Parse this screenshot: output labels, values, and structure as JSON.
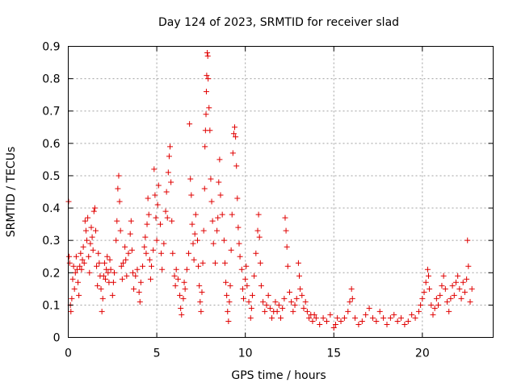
{
  "chart_data": {
    "type": "scatter",
    "title": "Day 124 of 2023, SRMTID for receiver slad",
    "xlabel": "GPS time / hours",
    "ylabel": "SRMTID / TECUs",
    "xlim": [
      0,
      24
    ],
    "ylim": [
      0,
      0.9
    ],
    "xticks": [
      0,
      5,
      10,
      15,
      20
    ],
    "xtick_labels": [
      "0",
      "5",
      "10",
      "15",
      "20"
    ],
    "yticks": [
      0,
      0.1,
      0.2,
      0.3,
      0.4,
      0.5,
      0.6,
      0.7,
      0.8,
      0.9
    ],
    "ytick_labels": [
      "0",
      "0.1",
      "0.2",
      "0.3",
      "0.4",
      "0.5",
      "0.6",
      "0.7",
      "0.8",
      "0.9"
    ],
    "grid": true,
    "marker": "+",
    "marker_color": "#e00000",
    "series": [
      {
        "name": "SRMTID",
        "points": [
          [
            0.02,
            0.42
          ],
          [
            0.05,
            0.25
          ],
          [
            0.08,
            0.23
          ],
          [
            0.12,
            0.1
          ],
          [
            0.15,
            0.08
          ],
          [
            0.2,
            0.12
          ],
          [
            0.25,
            0.18
          ],
          [
            0.3,
            0.22
          ],
          [
            0.35,
            0.15
          ],
          [
            0.4,
            0.2
          ],
          [
            0.45,
            0.25
          ],
          [
            0.5,
            0.21
          ],
          [
            0.55,
            0.17
          ],
          [
            0.6,
            0.13
          ],
          [
            0.65,
            0.22
          ],
          [
            0.7,
            0.26
          ],
          [
            0.75,
            0.21
          ],
          [
            0.8,
            0.24
          ],
          [
            0.85,
            0.28
          ],
          [
            0.9,
            0.23
          ],
          [
            0.95,
            0.36
          ],
          [
            1.0,
            0.33
          ],
          [
            1.05,
            0.3
          ],
          [
            1.1,
            0.37
          ],
          [
            1.15,
            0.25
          ],
          [
            1.2,
            0.2
          ],
          [
            1.25,
            0.29
          ],
          [
            1.3,
            0.34
          ],
          [
            1.35,
            0.31
          ],
          [
            1.4,
            0.27
          ],
          [
            1.45,
            0.39
          ],
          [
            1.5,
            0.4
          ],
          [
            1.55,
            0.33
          ],
          [
            1.6,
            0.22
          ],
          [
            1.65,
            0.16
          ],
          [
            1.7,
            0.26
          ],
          [
            1.75,
            0.23
          ],
          [
            1.8,
            0.19
          ],
          [
            1.85,
            0.15
          ],
          [
            1.9,
            0.08
          ],
          [
            1.95,
            0.12
          ],
          [
            2.0,
            0.19
          ],
          [
            2.05,
            0.23
          ],
          [
            2.1,
            0.18
          ],
          [
            2.15,
            0.21
          ],
          [
            2.2,
            0.25
          ],
          [
            2.25,
            0.2
          ],
          [
            2.3,
            0.17
          ],
          [
            2.35,
            0.24
          ],
          [
            2.4,
            0.21
          ],
          [
            2.5,
            0.13
          ],
          [
            2.55,
            0.17
          ],
          [
            2.6,
            0.2
          ],
          [
            2.7,
            0.3
          ],
          [
            2.75,
            0.36
          ],
          [
            2.8,
            0.46
          ],
          [
            2.85,
            0.5
          ],
          [
            2.9,
            0.42
          ],
          [
            2.95,
            0.33
          ],
          [
            3.0,
            0.22
          ],
          [
            3.05,
            0.18
          ],
          [
            3.1,
            0.23
          ],
          [
            3.2,
            0.28
          ],
          [
            3.25,
            0.24
          ],
          [
            3.3,
            0.19
          ],
          [
            3.4,
            0.26
          ],
          [
            3.5,
            0.32
          ],
          [
            3.55,
            0.36
          ],
          [
            3.6,
            0.27
          ],
          [
            3.65,
            0.2
          ],
          [
            3.7,
            0.15
          ],
          [
            3.8,
            0.19
          ],
          [
            3.9,
            0.21
          ],
          [
            4.0,
            0.14
          ],
          [
            4.05,
            0.11
          ],
          [
            4.1,
            0.17
          ],
          [
            4.2,
            0.22
          ],
          [
            4.3,
            0.28
          ],
          [
            4.35,
            0.31
          ],
          [
            4.4,
            0.26
          ],
          [
            4.45,
            0.35
          ],
          [
            4.5,
            0.43
          ],
          [
            4.55,
            0.38
          ],
          [
            4.6,
            0.24
          ],
          [
            4.65,
            0.18
          ],
          [
            4.7,
            0.22
          ],
          [
            4.8,
            0.27
          ],
          [
            4.85,
            0.52
          ],
          [
            4.9,
            0.44
          ],
          [
            4.95,
            0.37
          ],
          [
            5.0,
            0.3
          ],
          [
            5.05,
            0.41
          ],
          [
            5.1,
            0.47
          ],
          [
            5.2,
            0.35
          ],
          [
            5.25,
            0.26
          ],
          [
            5.3,
            0.21
          ],
          [
            5.4,
            0.29
          ],
          [
            5.5,
            0.39
          ],
          [
            5.55,
            0.45
          ],
          [
            5.6,
            0.37
          ],
          [
            5.65,
            0.51
          ],
          [
            5.7,
            0.56
          ],
          [
            5.75,
            0.59
          ],
          [
            5.8,
            0.48
          ],
          [
            5.85,
            0.36
          ],
          [
            5.9,
            0.26
          ],
          [
            6.0,
            0.19
          ],
          [
            6.05,
            0.16
          ],
          [
            6.1,
            0.21
          ],
          [
            6.2,
            0.18
          ],
          [
            6.3,
            0.13
          ],
          [
            6.35,
            0.09
          ],
          [
            6.4,
            0.07
          ],
          [
            6.5,
            0.12
          ],
          [
            6.55,
            0.17
          ],
          [
            6.6,
            0.15
          ],
          [
            6.7,
            0.21
          ],
          [
            6.8,
            0.26
          ],
          [
            6.85,
            0.66
          ],
          [
            6.9,
            0.49
          ],
          [
            6.95,
            0.44
          ],
          [
            7.0,
            0.35
          ],
          [
            7.05,
            0.29
          ],
          [
            7.1,
            0.24
          ],
          [
            7.15,
            0.32
          ],
          [
            7.2,
            0.38
          ],
          [
            7.3,
            0.3
          ],
          [
            7.35,
            0.22
          ],
          [
            7.4,
            0.16
          ],
          [
            7.45,
            0.11
          ],
          [
            7.5,
            0.08
          ],
          [
            7.55,
            0.14
          ],
          [
            7.6,
            0.23
          ],
          [
            7.65,
            0.33
          ],
          [
            7.7,
            0.46
          ],
          [
            7.72,
            0.59
          ],
          [
            7.75,
            0.64
          ],
          [
            7.78,
            0.69
          ],
          [
            7.8,
            0.76
          ],
          [
            7.82,
            0.81
          ],
          [
            7.85,
            0.88
          ],
          [
            7.88,
            0.87
          ],
          [
            7.9,
            0.8
          ],
          [
            7.95,
            0.71
          ],
          [
            8.0,
            0.64
          ],
          [
            8.05,
            0.49
          ],
          [
            8.1,
            0.42
          ],
          [
            8.15,
            0.36
          ],
          [
            8.2,
            0.29
          ],
          [
            8.3,
            0.23
          ],
          [
            8.4,
            0.33
          ],
          [
            8.45,
            0.37
          ],
          [
            8.5,
            0.48
          ],
          [
            8.55,
            0.55
          ],
          [
            8.6,
            0.44
          ],
          [
            8.7,
            0.38
          ],
          [
            8.8,
            0.3
          ],
          [
            8.85,
            0.23
          ],
          [
            8.9,
            0.17
          ],
          [
            8.95,
            0.13
          ],
          [
            9.0,
            0.08
          ],
          [
            9.05,
            0.05
          ],
          [
            9.1,
            0.11
          ],
          [
            9.15,
            0.16
          ],
          [
            9.2,
            0.27
          ],
          [
            9.25,
            0.38
          ],
          [
            9.3,
            0.57
          ],
          [
            9.35,
            0.63
          ],
          [
            9.4,
            0.65
          ],
          [
            9.45,
            0.62
          ],
          [
            9.5,
            0.53
          ],
          [
            9.55,
            0.43
          ],
          [
            9.6,
            0.34
          ],
          [
            9.65,
            0.29
          ],
          [
            9.7,
            0.25
          ],
          [
            9.8,
            0.21
          ],
          [
            9.85,
            0.15
          ],
          [
            9.9,
            0.12
          ],
          [
            10.0,
            0.18
          ],
          [
            10.05,
            0.22
          ],
          [
            10.1,
            0.16
          ],
          [
            10.2,
            0.11
          ],
          [
            10.3,
            0.06
          ],
          [
            10.35,
            0.09
          ],
          [
            10.4,
            0.13
          ],
          [
            10.5,
            0.19
          ],
          [
            10.6,
            0.26
          ],
          [
            10.7,
            0.33
          ],
          [
            10.75,
            0.38
          ],
          [
            10.8,
            0.31
          ],
          [
            10.85,
            0.23
          ],
          [
            10.9,
            0.16
          ],
          [
            11.0,
            0.11
          ],
          [
            11.1,
            0.08
          ],
          [
            11.2,
            0.1
          ],
          [
            11.3,
            0.13
          ],
          [
            11.4,
            0.09
          ],
          [
            11.5,
            0.06
          ],
          [
            11.6,
            0.08
          ],
          [
            11.7,
            0.11
          ],
          [
            11.8,
            0.08
          ],
          [
            11.9,
            0.1
          ],
          [
            12.0,
            0.06
          ],
          [
            12.1,
            0.09
          ],
          [
            12.2,
            0.12
          ],
          [
            12.25,
            0.37
          ],
          [
            12.3,
            0.33
          ],
          [
            12.35,
            0.28
          ],
          [
            12.4,
            0.22
          ],
          [
            12.5,
            0.14
          ],
          [
            12.6,
            0.11
          ],
          [
            12.7,
            0.08
          ],
          [
            12.8,
            0.1
          ],
          [
            12.9,
            0.12
          ],
          [
            13.0,
            0.23
          ],
          [
            13.05,
            0.19
          ],
          [
            13.1,
            0.15
          ],
          [
            13.2,
            0.13
          ],
          [
            13.3,
            0.09
          ],
          [
            13.4,
            0.11
          ],
          [
            13.5,
            0.08
          ],
          [
            13.6,
            0.06
          ],
          [
            13.7,
            0.07
          ],
          [
            13.8,
            0.05
          ],
          [
            13.9,
            0.07
          ],
          [
            14.0,
            0.06
          ],
          [
            14.2,
            0.04
          ],
          [
            14.4,
            0.06
          ],
          [
            14.6,
            0.05
          ],
          [
            14.8,
            0.07
          ],
          [
            15.0,
            0.03
          ],
          [
            15.1,
            0.04
          ],
          [
            15.2,
            0.06
          ],
          [
            15.4,
            0.05
          ],
          [
            15.6,
            0.06
          ],
          [
            15.8,
            0.08
          ],
          [
            15.9,
            0.11
          ],
          [
            16.0,
            0.15
          ],
          [
            16.05,
            0.12
          ],
          [
            16.2,
            0.06
          ],
          [
            16.4,
            0.04
          ],
          [
            16.6,
            0.05
          ],
          [
            16.8,
            0.07
          ],
          [
            17.0,
            0.09
          ],
          [
            17.2,
            0.06
          ],
          [
            17.4,
            0.05
          ],
          [
            17.6,
            0.08
          ],
          [
            17.8,
            0.06
          ],
          [
            18.0,
            0.04
          ],
          [
            18.2,
            0.06
          ],
          [
            18.4,
            0.07
          ],
          [
            18.6,
            0.05
          ],
          [
            18.8,
            0.06
          ],
          [
            19.0,
            0.04
          ],
          [
            19.2,
            0.05
          ],
          [
            19.4,
            0.07
          ],
          [
            19.6,
            0.06
          ],
          [
            19.8,
            0.08
          ],
          [
            19.9,
            0.1
          ],
          [
            20.0,
            0.12
          ],
          [
            20.1,
            0.14
          ],
          [
            20.2,
            0.17
          ],
          [
            20.3,
            0.21
          ],
          [
            20.35,
            0.19
          ],
          [
            20.4,
            0.15
          ],
          [
            20.5,
            0.1
          ],
          [
            20.6,
            0.07
          ],
          [
            20.7,
            0.09
          ],
          [
            20.8,
            0.12
          ],
          [
            20.9,
            0.1
          ],
          [
            21.0,
            0.13
          ],
          [
            21.1,
            0.16
          ],
          [
            21.2,
            0.19
          ],
          [
            21.3,
            0.15
          ],
          [
            21.4,
            0.11
          ],
          [
            21.5,
            0.08
          ],
          [
            21.6,
            0.12
          ],
          [
            21.7,
            0.16
          ],
          [
            21.8,
            0.13
          ],
          [
            21.9,
            0.17
          ],
          [
            22.0,
            0.19
          ],
          [
            22.1,
            0.15
          ],
          [
            22.2,
            0.12
          ],
          [
            22.3,
            0.17
          ],
          [
            22.4,
            0.14
          ],
          [
            22.5,
            0.18
          ],
          [
            22.55,
            0.3
          ],
          [
            22.6,
            0.22
          ],
          [
            22.7,
            0.11
          ],
          [
            22.8,
            0.15
          ]
        ]
      }
    ]
  }
}
